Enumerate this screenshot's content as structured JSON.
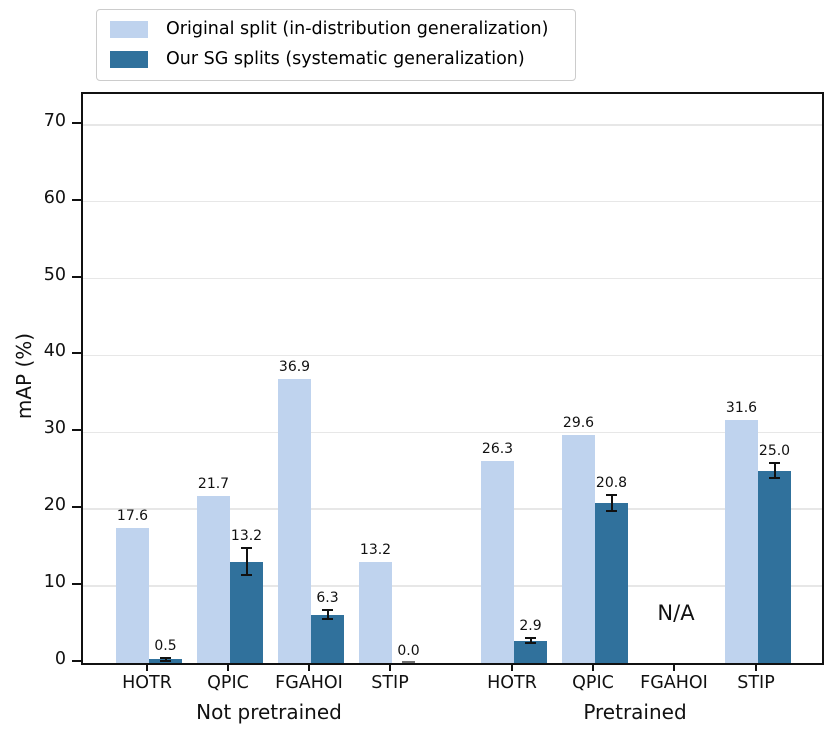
{
  "chart_data": {
    "type": "bar",
    "title": "",
    "ylabel": "mAP (%)",
    "ylim": [
      0,
      74
    ],
    "yticks": [
      0,
      10,
      20,
      30,
      40,
      50,
      60,
      70
    ],
    "grid": "horizontal-light-gray",
    "legend_position": "top-left-outside",
    "categories": [
      "HOTR",
      "QPIC",
      "FGAHOI",
      "STIP",
      "HOTR",
      "QPIC",
      "FGAHOI",
      "STIP"
    ],
    "groups": [
      {
        "label": "Not pretrained",
        "category_indices": [
          0,
          1,
          2,
          3
        ]
      },
      {
        "label": "Pretrained",
        "category_indices": [
          4,
          5,
          6,
          7
        ]
      }
    ],
    "series": [
      {
        "name": "Original split (in-distribution generalization)",
        "color": "#bfd3ee",
        "values": [
          17.6,
          21.7,
          36.9,
          13.2,
          26.3,
          29.6,
          null,
          31.6
        ]
      },
      {
        "name": "Our SG splits (systematic generalization)",
        "color": "#30719c",
        "values": [
          0.5,
          13.2,
          6.3,
          0.0,
          2.9,
          20.8,
          null,
          25.0
        ],
        "errors": [
          0.2,
          1.8,
          0.6,
          0.0,
          0.3,
          1.0,
          null,
          1.0
        ]
      }
    ],
    "annotations": [
      {
        "text": "N/A",
        "category_index": 6
      }
    ],
    "colors": {
      "axis": "#111111",
      "gridline": "#e7e7e7",
      "error_bar": "#111111"
    }
  }
}
